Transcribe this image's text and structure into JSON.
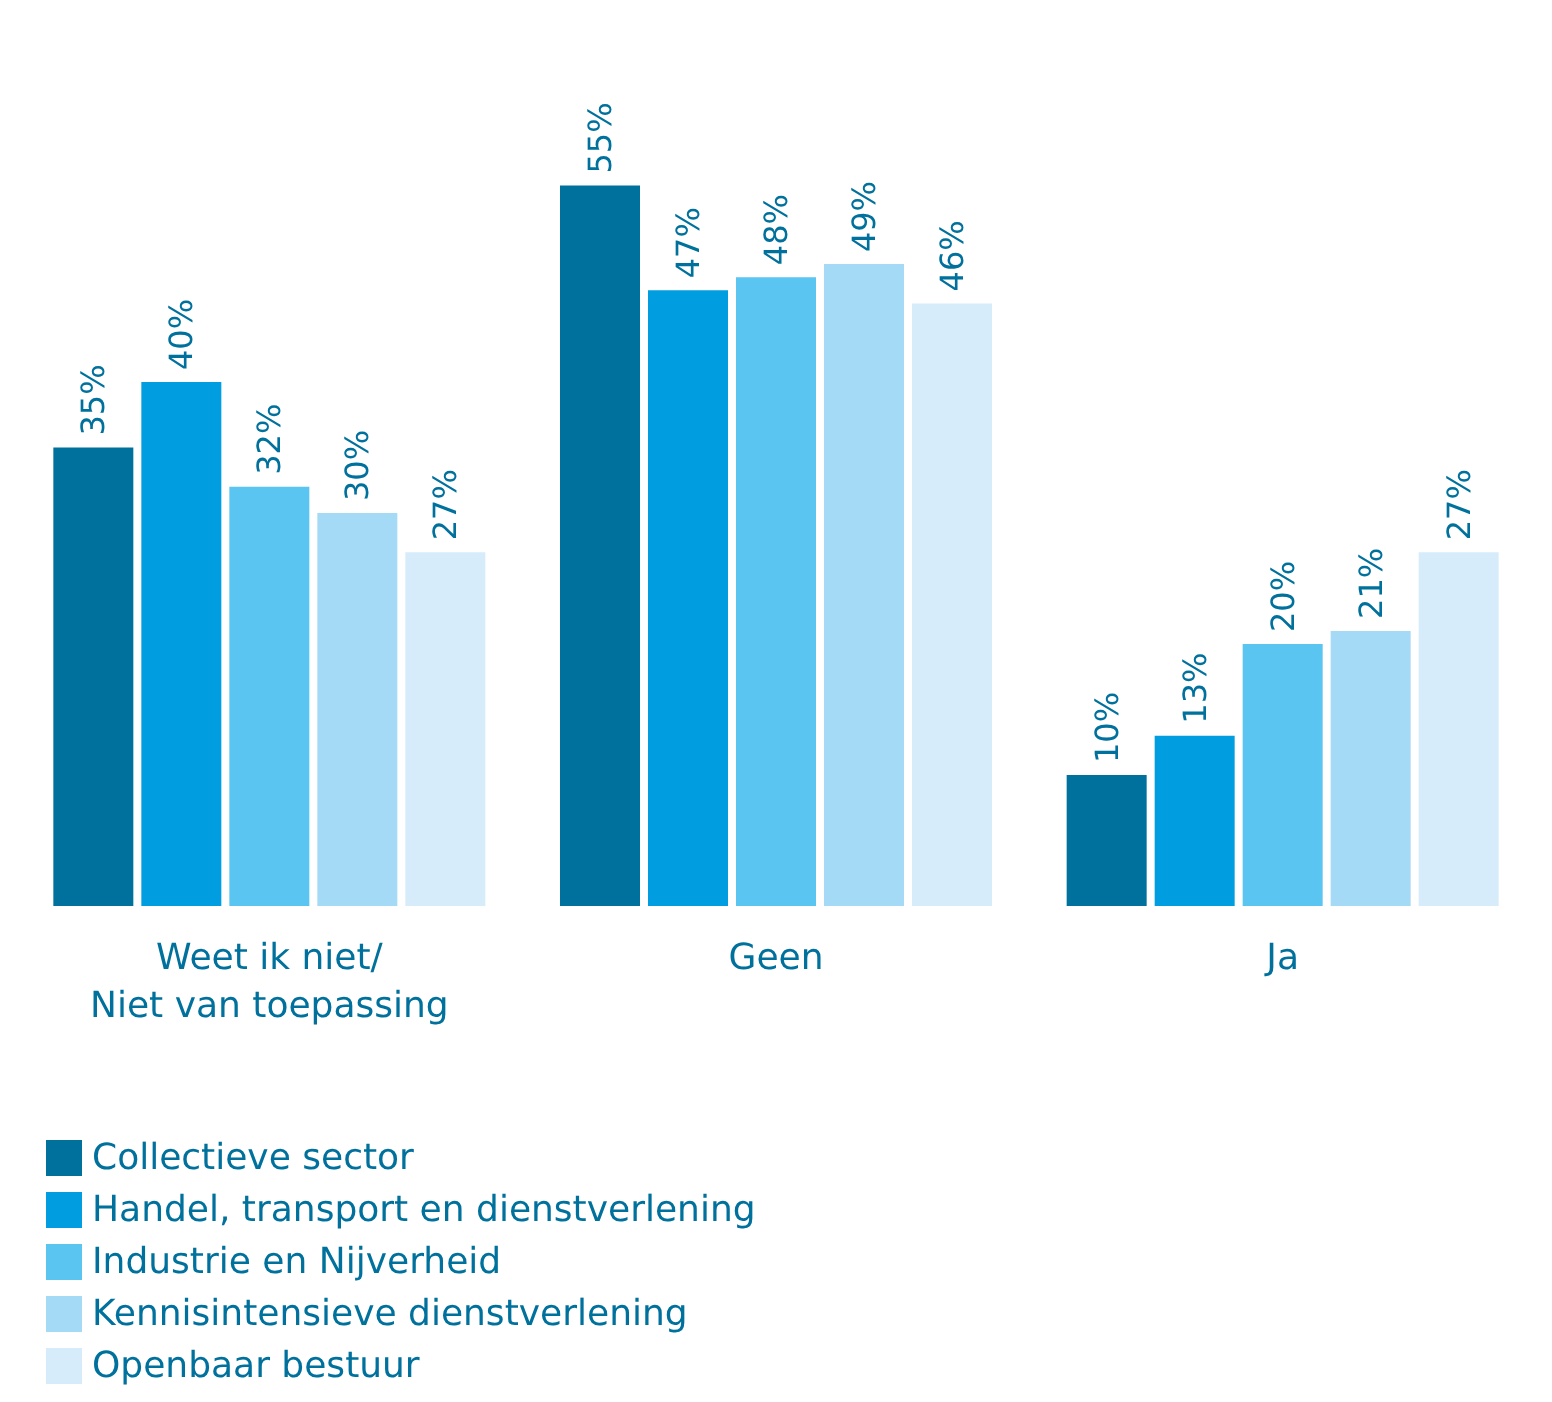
{
  "chart_data": {
    "type": "bar",
    "categories": [
      "Weet ik niet/\nNiet van toepassing",
      "Geen",
      "Ja"
    ],
    "series": [
      {
        "name": "Collectieve sector",
        "color": "#00719c",
        "values": [
          35,
          55,
          10
        ],
        "value_labels": [
          "35%",
          "55%",
          "10%"
        ]
      },
      {
        "name": "Handel, transport en dienstverlening",
        "color": "#009ee0",
        "values": [
          40,
          47,
          13
        ],
        "value_labels": [
          "40%",
          "47%",
          "13%"
        ]
      },
      {
        "name": "Industrie en Nijverheid",
        "color": "#5bc5f2",
        "values": [
          32,
          48,
          20
        ],
        "value_labels": [
          "32%",
          "48%",
          "20%"
        ]
      },
      {
        "name": "Kennisintensieve dienstverlening",
        "color": "#a5daf6",
        "values": [
          30,
          49,
          21
        ],
        "value_labels": [
          "30%",
          "49%",
          "21%"
        ]
      },
      {
        "name": "Openbaar bestuur",
        "color": "#d6ecfb",
        "values": [
          27,
          46,
          27
        ],
        "value_labels": [
          "27%",
          "46%",
          "27%"
        ]
      }
    ],
    "legend": "bottom left"
  }
}
